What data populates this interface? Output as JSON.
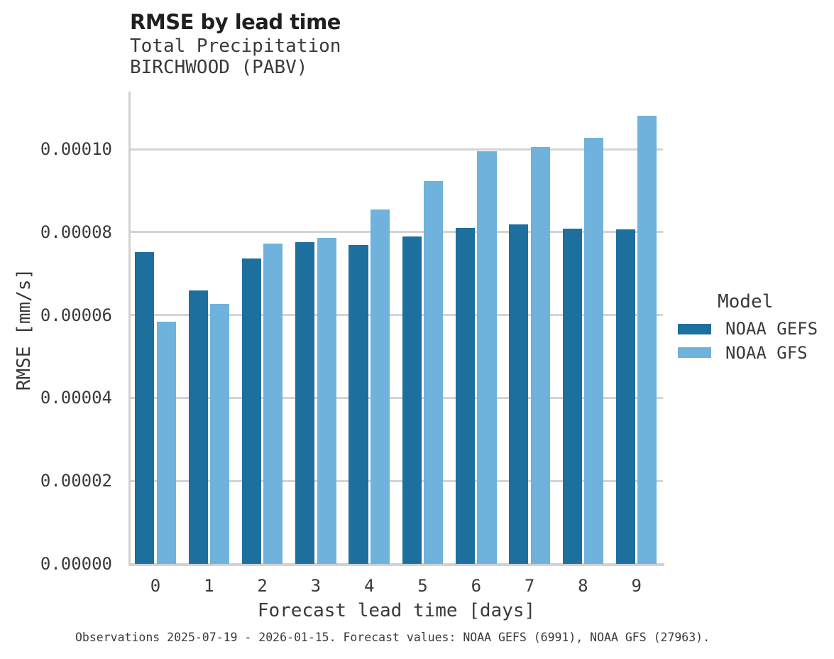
{
  "title": "RMSE by lead time",
  "subtitle_line1": "Total Precipitation",
  "subtitle_line2": "BIRCHWOOD (PABV)",
  "caption": "Observations 2025-07-19 - 2026-01-15. Forecast values: NOAA GEFS (6991), NOAA GFS (27963).",
  "colors": {
    "gefs_dark_blue": "#1d6f9e",
    "gfs_light_blue": "#6fb2db",
    "grid_gray": "#d4d4d4",
    "text_gray": "#3a3a3a",
    "title_black": "#1f1f1f"
  },
  "legend": {
    "title": "Model",
    "items": [
      {
        "label": "NOAA GEFS",
        "series_index": 0
      },
      {
        "label": "NOAA GFS",
        "series_index": 1
      }
    ]
  },
  "chart_data": {
    "type": "bar",
    "title": "RMSE by lead time",
    "subtitle": [
      "Total Precipitation",
      "BIRCHWOOD (PABV)"
    ],
    "xlabel": "Forecast lead time [days]",
    "ylabel": "RMSE [mm/s]",
    "categories": [
      "0",
      "1",
      "2",
      "3",
      "4",
      "5",
      "6",
      "7",
      "8",
      "9"
    ],
    "series": [
      {
        "name": "NOAA GEFS",
        "color": "#1d6f9e",
        "values": [
          7.52e-05,
          6.59e-05,
          7.36e-05,
          7.76e-05,
          7.69e-05,
          7.9e-05,
          8.11e-05,
          8.19e-05,
          8.09e-05,
          8.06e-05
        ]
      },
      {
        "name": "NOAA GFS",
        "color": "#6fb2db",
        "values": [
          5.84e-05,
          6.27e-05,
          7.73e-05,
          7.87e-05,
          8.55e-05,
          9.23e-05,
          9.96e-05,
          0.0001006,
          0.0001027,
          0.0001081
        ]
      }
    ],
    "ylim": [
      0,
      0.0001139
    ],
    "yticks": [
      0,
      2e-05,
      4e-05,
      6e-05,
      8e-05,
      0.0001
    ],
    "ytick_labels": [
      "0.00000",
      "0.00002",
      "0.00004",
      "0.00006",
      "0.00008",
      "0.00010"
    ],
    "grid": "horizontal",
    "legend_position": "right",
    "legend_title": "Model"
  }
}
